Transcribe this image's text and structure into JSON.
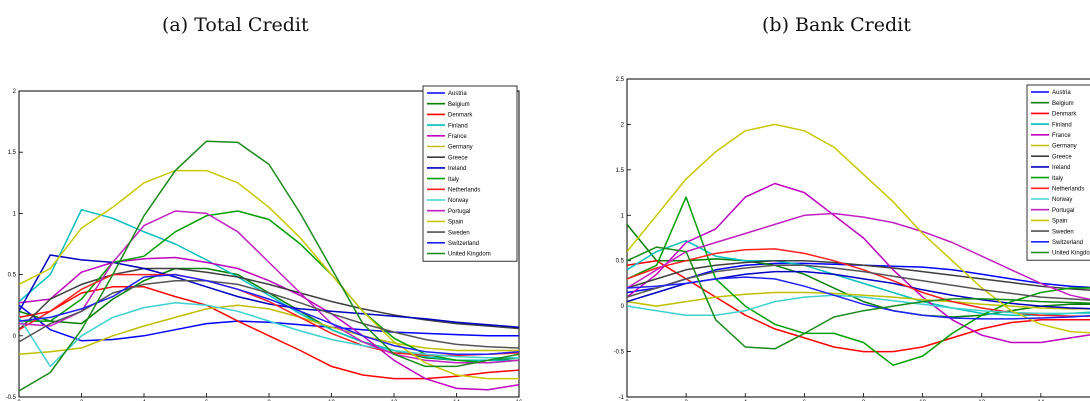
{
  "captions": {
    "a": "(a) Total Credit",
    "b": "(b) Bank Credit"
  },
  "chart_data": [
    {
      "type": "line",
      "title": "(a) Total Credit",
      "xlabel": "",
      "ylabel": "",
      "xlim": [
        0,
        16
      ],
      "ylim": [
        -0.5,
        2
      ],
      "xticks": [
        0,
        2,
        4,
        6,
        8,
        10,
        12,
        14,
        16
      ],
      "yticks": [
        -0.5,
        0,
        0.5,
        1,
        1.5,
        2
      ],
      "ytick_labels": [
        "-0.5",
        "0",
        "0.5",
        "1",
        "1.5",
        "2"
      ],
      "legend": "top-right",
      "grid": false,
      "x": [
        0,
        1,
        2,
        3,
        4,
        5,
        6,
        7,
        8,
        9,
        10,
        11,
        12,
        13,
        14,
        15,
        16
      ],
      "series": [
        {
          "name": "Austria",
          "color": "#0000ff",
          "values": [
            0.25,
            0.05,
            -0.04,
            -0.03,
            0.0,
            0.05,
            0.1,
            0.12,
            0.11,
            0.09,
            0.07,
            0.05,
            0.03,
            0.02,
            0.01,
            0.0,
            0.0
          ]
        },
        {
          "name": "Belgium",
          "color": "#007f00",
          "values": [
            0.2,
            0.12,
            0.1,
            0.3,
            0.45,
            0.55,
            0.55,
            0.5,
            0.35,
            0.2,
            0.05,
            -0.05,
            -0.12,
            -0.18,
            -0.2,
            -0.2,
            -0.18
          ]
        },
        {
          "name": "Denmark",
          "color": "#ff0000",
          "values": [
            0.15,
            0.2,
            0.35,
            0.4,
            0.4,
            0.32,
            0.25,
            0.12,
            0.0,
            -0.12,
            -0.25,
            -0.32,
            -0.35,
            -0.35,
            -0.33,
            -0.3,
            -0.28
          ]
        },
        {
          "name": "Finland",
          "color": "#00bfbf",
          "values": [
            0.28,
            0.5,
            1.03,
            0.96,
            0.85,
            0.75,
            0.62,
            0.48,
            0.33,
            0.18,
            0.05,
            -0.05,
            -0.12,
            -0.17,
            -0.2,
            -0.2,
            -0.2
          ]
        },
        {
          "name": "France",
          "color": "#bf00bf",
          "values": [
            0.27,
            0.3,
            0.52,
            0.6,
            0.63,
            0.64,
            0.6,
            0.55,
            0.45,
            0.33,
            0.18,
            0.0,
            -0.2,
            -0.35,
            -0.43,
            -0.44,
            -0.4
          ]
        },
        {
          "name": "Germany",
          "color": "#bfbf00",
          "values": [
            -0.15,
            -0.13,
            -0.1,
            0.0,
            0.08,
            0.15,
            0.22,
            0.25,
            0.22,
            0.15,
            0.07,
            0.0,
            -0.06,
            -0.1,
            -0.12,
            -0.12,
            -0.12
          ]
        },
        {
          "name": "Greece",
          "color": "#3f3f3f",
          "values": [
            0.05,
            0.3,
            0.42,
            0.5,
            0.55,
            0.55,
            0.52,
            0.48,
            0.42,
            0.35,
            0.28,
            0.22,
            0.17,
            0.13,
            0.1,
            0.08,
            0.06
          ]
        },
        {
          "name": "Ireland",
          "color": "#0000bf",
          "values": [
            0.2,
            0.66,
            0.62,
            0.6,
            0.55,
            0.48,
            0.4,
            0.32,
            0.26,
            0.22,
            0.2,
            0.18,
            0.16,
            0.14,
            0.11,
            0.09,
            0.07
          ]
        },
        {
          "name": "Italy",
          "color": "#00a000",
          "values": [
            0.12,
            0.12,
            0.3,
            0.6,
            0.65,
            0.85,
            0.98,
            1.02,
            0.95,
            0.75,
            0.5,
            0.2,
            -0.02,
            -0.15,
            -0.2,
            -0.22,
            -0.2
          ]
        },
        {
          "name": "Netherlands",
          "color": "#ff2020",
          "values": [
            0.05,
            0.2,
            0.38,
            0.5,
            0.5,
            0.5,
            0.45,
            0.38,
            0.28,
            0.15,
            0.02,
            -0.08,
            -0.14,
            -0.16,
            -0.16,
            -0.15,
            -0.14
          ]
        },
        {
          "name": "Norway",
          "color": "#40d0d0",
          "values": [
            0.15,
            -0.25,
            0.0,
            0.15,
            0.23,
            0.27,
            0.25,
            0.2,
            0.12,
            0.04,
            -0.03,
            -0.08,
            -0.12,
            -0.15,
            -0.17,
            -0.18,
            -0.18
          ]
        },
        {
          "name": "Portugal",
          "color": "#c020c0",
          "values": [
            0.1,
            0.08,
            0.2,
            0.6,
            0.9,
            1.02,
            1.0,
            0.85,
            0.6,
            0.35,
            0.1,
            -0.05,
            -0.15,
            -0.2,
            -0.22,
            -0.22,
            -0.2
          ]
        },
        {
          "name": "Spain",
          "color": "#c8c800",
          "values": [
            0.42,
            0.55,
            0.88,
            1.05,
            1.25,
            1.35,
            1.35,
            1.25,
            1.05,
            0.8,
            0.5,
            0.2,
            -0.05,
            -0.22,
            -0.32,
            -0.35,
            -0.35
          ]
        },
        {
          "name": "Sweden",
          "color": "#555555",
          "values": [
            -0.05,
            0.1,
            0.2,
            0.35,
            0.42,
            0.45,
            0.45,
            0.42,
            0.35,
            0.27,
            0.18,
            0.1,
            0.03,
            -0.03,
            -0.07,
            -0.09,
            -0.1
          ]
        },
        {
          "name": "Switzerland",
          "color": "#2020ff",
          "values": [
            0.12,
            0.15,
            0.22,
            0.32,
            0.48,
            0.5,
            0.45,
            0.38,
            0.3,
            0.2,
            0.1,
            0.0,
            -0.08,
            -0.13,
            -0.15,
            -0.15,
            -0.13
          ]
        },
        {
          "name": "United Kingdom",
          "color": "#1a8a1a",
          "values": [
            -0.45,
            -0.3,
            0.05,
            0.5,
            0.98,
            1.35,
            1.59,
            1.58,
            1.4,
            1.0,
            0.55,
            0.1,
            -0.15,
            -0.25,
            -0.25,
            -0.2,
            -0.15
          ]
        }
      ]
    },
    {
      "type": "line",
      "title": "(b) Bank Credit",
      "xlabel": "",
      "ylabel": "",
      "xlim": [
        0,
        16
      ],
      "ylim": [
        -1,
        2.5
      ],
      "xticks": [
        0,
        2,
        4,
        6,
        8,
        10,
        12,
        14
      ],
      "yticks": [
        -1,
        -0.5,
        0,
        0.5,
        1,
        1.5,
        2,
        2.5
      ],
      "ytick_labels": [
        "-1",
        "-0.5",
        "0",
        "0.5",
        "1",
        "1.5",
        "2",
        "2.5"
      ],
      "legend": "top-right",
      "grid": false,
      "x": [
        0,
        1,
        2,
        3,
        4,
        5,
        6,
        7,
        8,
        9,
        10,
        11,
        12,
        13,
        14,
        15,
        16
      ],
      "series": [
        {
          "name": "Austria",
          "color": "#0000ff",
          "values": [
            0.15,
            0.2,
            0.3,
            0.4,
            0.45,
            0.47,
            0.47,
            0.46,
            0.45,
            0.44,
            0.43,
            0.4,
            0.35,
            0.3,
            0.25,
            0.22,
            0.2
          ]
        },
        {
          "name": "Belgium",
          "color": "#007f00",
          "values": [
            0.9,
            0.5,
            0.5,
            0.52,
            0.5,
            0.45,
            0.35,
            0.2,
            0.05,
            -0.05,
            -0.1,
            -0.12,
            -0.1,
            -0.05,
            0.0,
            0.02,
            0.02
          ]
        },
        {
          "name": "Denmark",
          "color": "#ff0000",
          "values": [
            0.45,
            0.5,
            0.3,
            0.1,
            -0.1,
            -0.25,
            -0.35,
            -0.45,
            -0.5,
            -0.5,
            -0.45,
            -0.35,
            -0.25,
            -0.18,
            -0.15,
            -0.15,
            -0.15
          ]
        },
        {
          "name": "Finland",
          "color": "#00bfbf",
          "values": [
            0.4,
            0.6,
            0.72,
            0.55,
            0.5,
            0.5,
            0.45,
            0.35,
            0.25,
            0.15,
            0.05,
            -0.02,
            -0.08,
            -0.1,
            -0.1,
            -0.08,
            -0.06
          ]
        },
        {
          "name": "France",
          "color": "#bf00bf",
          "values": [
            0.1,
            0.35,
            0.7,
            0.85,
            1.2,
            1.35,
            1.25,
            1.0,
            0.75,
            0.4,
            0.1,
            -0.15,
            -0.32,
            -0.4,
            -0.4,
            -0.35,
            -0.3
          ]
        },
        {
          "name": "Germany",
          "color": "#bfbf00",
          "values": [
            0.05,
            0.0,
            0.05,
            0.1,
            0.13,
            0.15,
            0.15,
            0.14,
            0.12,
            0.1,
            0.07,
            0.05,
            0.02,
            0.0,
            -0.02,
            -0.03,
            -0.03
          ]
        },
        {
          "name": "Greece",
          "color": "#3f3f3f",
          "values": [
            0.2,
            0.3,
            0.4,
            0.45,
            0.48,
            0.5,
            0.5,
            0.48,
            0.45,
            0.42,
            0.38,
            0.34,
            0.3,
            0.26,
            0.22,
            0.19,
            0.17
          ]
        },
        {
          "name": "Ireland",
          "color": "#0000bf",
          "values": [
            0.05,
            0.15,
            0.25,
            0.3,
            0.35,
            0.38,
            0.38,
            0.35,
            0.3,
            0.25,
            0.18,
            0.12,
            0.07,
            0.03,
            0.0,
            -0.02,
            -0.03
          ]
        },
        {
          "name": "Italy",
          "color": "#00a000",
          "values": [
            0.3,
            0.45,
            1.2,
            0.3,
            0.0,
            -0.2,
            -0.3,
            -0.3,
            -0.4,
            -0.65,
            -0.55,
            -0.3,
            -0.1,
            0.05,
            0.15,
            0.2,
            0.2
          ]
        },
        {
          "name": "Netherlands",
          "color": "#ff2020",
          "values": [
            0.3,
            0.42,
            0.5,
            0.58,
            0.62,
            0.63,
            0.58,
            0.5,
            0.4,
            0.28,
            0.15,
            0.05,
            -0.02,
            -0.07,
            -0.1,
            -0.11,
            -0.11
          ]
        },
        {
          "name": "Norway",
          "color": "#40d0d0",
          "values": [
            0.0,
            -0.05,
            -0.1,
            -0.1,
            -0.05,
            0.05,
            0.1,
            0.12,
            0.1,
            0.06,
            0.02,
            -0.02,
            -0.05,
            -0.07,
            -0.08,
            -0.08,
            -0.08
          ]
        },
        {
          "name": "Portugal",
          "color": "#c020c0",
          "values": [
            0.2,
            0.4,
            0.6,
            0.7,
            0.8,
            0.9,
            1.0,
            1.02,
            0.98,
            0.92,
            0.82,
            0.7,
            0.55,
            0.4,
            0.25,
            0.12,
            0.05
          ]
        },
        {
          "name": "Spain",
          "color": "#c8c800",
          "values": [
            0.6,
            1.0,
            1.4,
            1.7,
            1.93,
            2.0,
            1.93,
            1.75,
            1.45,
            1.15,
            0.8,
            0.5,
            0.2,
            -0.05,
            -0.2,
            -0.28,
            -0.3
          ]
        },
        {
          "name": "Sweden",
          "color": "#555555",
          "values": [
            0.1,
            0.2,
            0.3,
            0.38,
            0.42,
            0.45,
            0.45,
            0.42,
            0.38,
            0.33,
            0.28,
            0.23,
            0.18,
            0.14,
            0.1,
            0.08,
            0.06
          ]
        },
        {
          "name": "Switzerland",
          "color": "#2020ff",
          "values": [
            0.2,
            0.22,
            0.25,
            0.3,
            0.32,
            0.3,
            0.22,
            0.12,
            0.02,
            -0.05,
            -0.1,
            -0.13,
            -0.14,
            -0.14,
            -0.13,
            -0.12,
            -0.1
          ]
        },
        {
          "name": "United Kingdom",
          "color": "#1a8a1a",
          "values": [
            0.5,
            0.65,
            0.6,
            -0.15,
            -0.45,
            -0.47,
            -0.3,
            -0.12,
            -0.05,
            0.0,
            0.05,
            0.08,
            0.08,
            0.07,
            0.05,
            0.04,
            0.03
          ]
        }
      ]
    }
  ]
}
